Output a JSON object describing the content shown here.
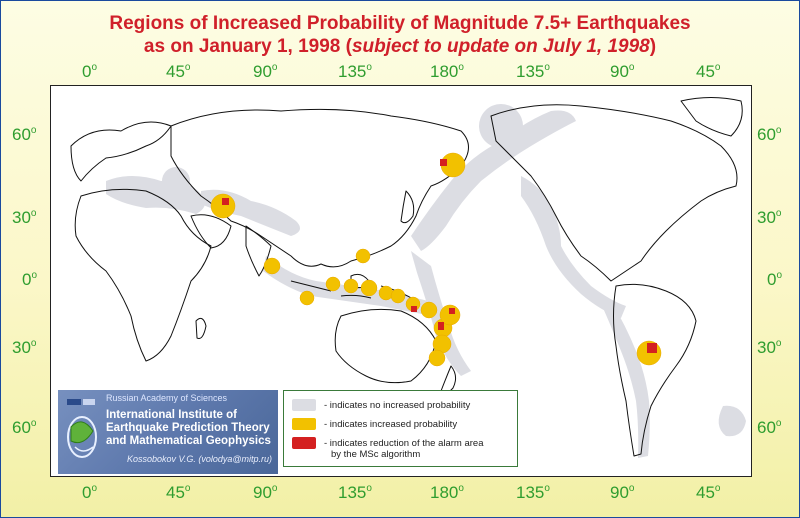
{
  "title": {
    "line1": "Regions of Increased Probability of Magnitude 7.5+ Earthquakes",
    "line2_prefix": "as on January 1, 1998 (",
    "line2_italic": "subject to update on July 1, 1998",
    "line2_suffix": ")"
  },
  "axes": {
    "longitude_labels": [
      "0",
      "45",
      "90",
      "135",
      "180",
      "135",
      "90",
      "45"
    ],
    "latitude_labels": [
      "60",
      "30",
      "0",
      "30",
      "60"
    ],
    "degree_symbol": "o"
  },
  "institute": {
    "academy": "Russian Academy of Sciences",
    "name_line1": "International Institute of",
    "name_line2": "Earthquake Prediction Theory",
    "name_line3": "and Mathematical Geophysics",
    "author": "Kossobokov V.G. (volodya@mitp.ru)"
  },
  "legend": {
    "items": [
      {
        "color": "#dcdde3",
        "text": "- indicates no increased probability"
      },
      {
        "color": "#f2c100",
        "text": "- indicates increased probability"
      },
      {
        "color": "#d42020",
        "text_line1": "- indicates reduction of the alarm area",
        "text_line2": "by the MSc algorithm"
      }
    ]
  },
  "colors": {
    "title": "#d0202a",
    "ticks": "#2f9d2f",
    "no_increase": "#dcdde3",
    "increased": "#f2c100",
    "reduced": "#d42020"
  }
}
